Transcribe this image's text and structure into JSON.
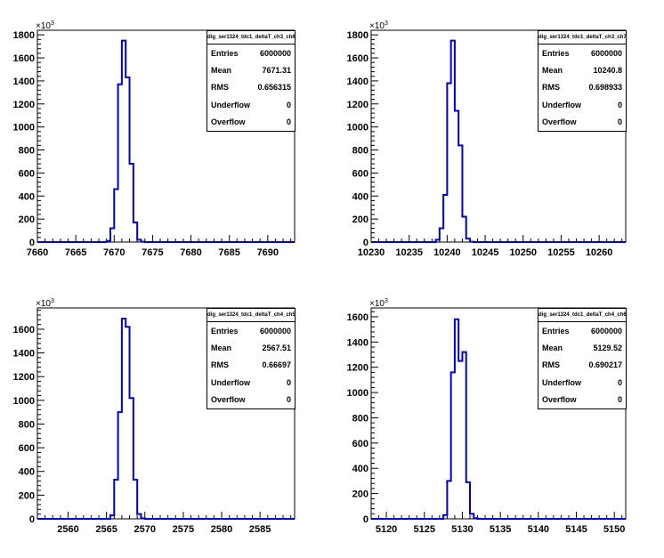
{
  "chart_data": [
    {
      "type": "histogram",
      "name": "dig_ser1324_tdc1_deltaT_ch3_ch6",
      "y_multiplier": "×10",
      "y_exponent": "3",
      "xlim": [
        7660,
        7693.5
      ],
      "ylim": [
        0,
        1840
      ],
      "xticks": [
        7660,
        7665,
        7670,
        7675,
        7680,
        7685,
        7690
      ],
      "yticks": [
        0,
        200,
        400,
        600,
        800,
        1000,
        1200,
        1400,
        1600,
        1800
      ],
      "bins": {
        "x_start": 7669.0,
        "width": 0.5,
        "values": [
          10,
          120,
          460,
          1370,
          1750,
          1430,
          680,
          170,
          20,
          3
        ]
      },
      "stats": [
        {
          "label": "Entries",
          "value": "6000000"
        },
        {
          "label": "Mean",
          "value": "7671.31"
        },
        {
          "label": "RMS",
          "value": "0.656315"
        },
        {
          "label": "Underflow",
          "value": "0"
        },
        {
          "label": "Overflow",
          "value": "0"
        }
      ],
      "line_color": "#0000cc"
    },
    {
      "type": "histogram",
      "name": "dig_ser1324_tdc1_deltaT_ch3_ch7",
      "y_multiplier": "×10",
      "y_exponent": "3",
      "xlim": [
        10230,
        10263.5
      ],
      "ylim": [
        0,
        1840
      ],
      "xticks": [
        10230,
        10235,
        10240,
        10245,
        10250,
        10255,
        10260
      ],
      "yticks": [
        0,
        200,
        400,
        600,
        800,
        1000,
        1200,
        1400,
        1600,
        1800
      ],
      "bins": {
        "x_start": 10238.5,
        "width": 0.5,
        "values": [
          20,
          120,
          410,
          1380,
          1750,
          1140,
          840,
          220,
          30,
          3
        ]
      },
      "stats": [
        {
          "label": "Entries",
          "value": "6000000"
        },
        {
          "label": "Mean",
          "value": "10240.8"
        },
        {
          "label": "RMS",
          "value": "0.698933"
        },
        {
          "label": "Underflow",
          "value": "0"
        },
        {
          "label": "Overflow",
          "value": "0"
        }
      ],
      "line_color": "#0000cc"
    },
    {
      "type": "histogram",
      "name": "dig_ser1324_tdc1_deltaT_ch4_ch5",
      "y_multiplier": "×10",
      "y_exponent": "3",
      "xlim": [
        2556,
        2589.5
      ],
      "ylim": [
        0,
        1780
      ],
      "xticks": [
        2560,
        2565,
        2570,
        2575,
        2580,
        2585
      ],
      "yticks": [
        0,
        200,
        400,
        600,
        800,
        1000,
        1200,
        1400,
        1600
      ],
      "bins": {
        "x_start": 2565.5,
        "width": 0.5,
        "values": [
          30,
          330,
          900,
          1690,
          1620,
          1020,
          330,
          40,
          5
        ]
      },
      "stats": [
        {
          "label": "Entries",
          "value": "6000000"
        },
        {
          "label": "Mean",
          "value": "2567.51"
        },
        {
          "label": "RMS",
          "value": "0.66697"
        },
        {
          "label": "Underflow",
          "value": "0"
        },
        {
          "label": "Overflow",
          "value": "0"
        }
      ],
      "line_color": "#0000cc"
    },
    {
      "type": "histogram",
      "name": "dig_ser1324_tdc1_deltaT_ch4_ch6",
      "y_multiplier": "×10",
      "y_exponent": "3",
      "xlim": [
        5118,
        5151.5
      ],
      "ylim": [
        0,
        1670
      ],
      "xticks": [
        5120,
        5125,
        5130,
        5135,
        5140,
        5145,
        5150
      ],
      "yticks": [
        0,
        200,
        400,
        600,
        800,
        1000,
        1200,
        1400,
        1600
      ],
      "bins": {
        "x_start": 5127.5,
        "width": 0.5,
        "values": [
          30,
          300,
          1160,
          1580,
          1250,
          1320,
          290,
          40,
          5
        ]
      },
      "stats": [
        {
          "label": "Entries",
          "value": "6000000"
        },
        {
          "label": "Mean",
          "value": "5129.52"
        },
        {
          "label": "RMS",
          "value": "0.690217"
        },
        {
          "label": "Underflow",
          "value": "0"
        },
        {
          "label": "Overflow",
          "value": "0"
        }
      ],
      "line_color": "#0000cc"
    }
  ]
}
